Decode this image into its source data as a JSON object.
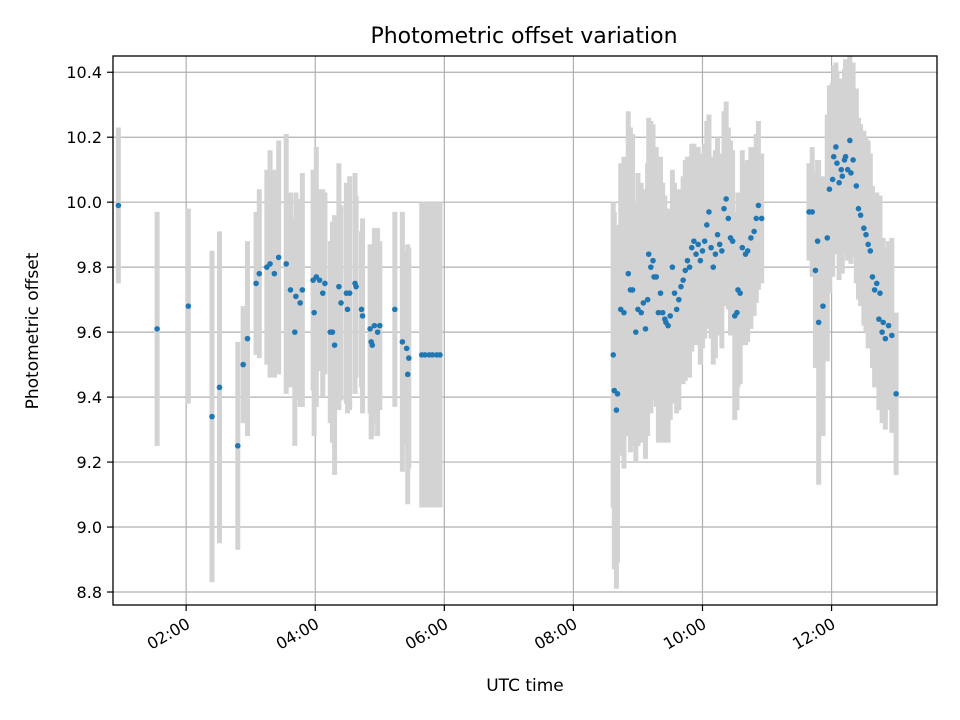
{
  "chart_data": {
    "type": "scatter",
    "title": "Photometric offset variation",
    "xlabel": "UTC time",
    "ylabel": "Photometric offset",
    "xlim": [
      "00:52",
      "13:38"
    ],
    "ylim": [
      8.76,
      10.45
    ],
    "grid": true,
    "x_ticks": [
      "02:00",
      "04:00",
      "06:00",
      "08:00",
      "10:00",
      "12:00"
    ],
    "y_ticks": [
      8.8,
      9.0,
      9.2,
      9.4,
      9.6,
      9.8,
      10.0,
      10.2,
      10.4
    ],
    "colors": {
      "point": "#1f77b4",
      "errorbar": "#d3d3d3",
      "grid": "#b0b0b0"
    },
    "series": [
      {
        "values": [
          [
            "00:57",
            9.99,
            0.24
          ],
          [
            "01:33",
            9.61,
            0.36
          ],
          [
            "02:02",
            9.68,
            0.3
          ],
          [
            "02:24",
            9.34,
            0.51
          ],
          [
            "02:31",
            9.43,
            0.48
          ],
          [
            "02:48",
            9.25,
            0.32
          ],
          [
            "02:53",
            9.5,
            0.18
          ],
          [
            "02:57",
            9.58,
            0.3
          ],
          [
            "03:05",
            9.75,
            0.22
          ],
          [
            "03:08",
            9.78,
            0.26
          ],
          [
            "03:15",
            9.8,
            0.3
          ],
          [
            "03:18",
            9.81,
            0.35
          ],
          [
            "03:22",
            9.78,
            0.32
          ],
          [
            "03:26",
            9.83,
            0.36
          ],
          [
            "03:33",
            9.81,
            0.4
          ],
          [
            "03:37",
            9.73,
            0.3
          ],
          [
            "03:41",
            9.6,
            0.35
          ],
          [
            "03:42",
            9.71,
            0.32
          ],
          [
            "03:46",
            9.69,
            0.32
          ],
          [
            "03:48",
            9.73,
            0.36
          ],
          [
            "03:58",
            9.76,
            0.34
          ],
          [
            "03:59",
            9.66,
            0.38
          ],
          [
            "04:01",
            9.77,
            0.4
          ],
          [
            "04:04",
            9.76,
            0.28
          ],
          [
            "04:07",
            9.72,
            0.32
          ],
          [
            "04:09",
            9.75,
            0.28
          ],
          [
            "04:14",
            9.6,
            0.28
          ],
          [
            "04:16",
            9.6,
            0.34
          ],
          [
            "04:18",
            9.56,
            0.4
          ],
          [
            "04:22",
            9.74,
            0.38
          ],
          [
            "04:24",
            9.69,
            0.3
          ],
          [
            "04:29",
            9.72,
            0.34
          ],
          [
            "04:30",
            9.67,
            0.32
          ],
          [
            "04:32",
            9.72,
            0.36
          ],
          [
            "04:37",
            9.75,
            0.34
          ],
          [
            "04:38",
            9.74,
            0.28
          ],
          [
            "04:43",
            9.67,
            0.24
          ],
          [
            "04:44",
            9.65,
            0.3
          ],
          [
            "04:51",
            9.61,
            0.26
          ],
          [
            "04:52",
            9.57,
            0.3
          ],
          [
            "04:53",
            9.56,
            0.28
          ],
          [
            "04:55",
            9.62,
            0.3
          ],
          [
            "04:58",
            9.6,
            0.32
          ],
          [
            "05:00",
            9.62,
            0.26
          ],
          [
            "05:14",
            9.67,
            0.3
          ],
          [
            "05:21",
            9.57,
            0.4
          ],
          [
            "05:25",
            9.55,
            0.3
          ],
          [
            "05:26",
            9.47,
            0.4
          ],
          [
            "05:27",
            9.52,
            0.34
          ],
          [
            "05:39",
            9.53,
            0.47
          ],
          [
            "05:42",
            9.53,
            0.47
          ],
          [
            "05:46",
            9.53,
            0.47
          ],
          [
            "05:49",
            9.53,
            0.47
          ],
          [
            "05:53",
            9.53,
            0.47
          ],
          [
            "05:56",
            9.53,
            0.47
          ],
          [
            "08:37",
            9.53,
            0.47
          ],
          [
            "08:38",
            9.42,
            0.55
          ],
          [
            "08:40",
            9.36,
            0.55
          ],
          [
            "08:41",
            9.41,
            0.52
          ],
          [
            "08:44",
            9.67,
            0.45
          ],
          [
            "08:47",
            9.66,
            0.48
          ],
          [
            "08:51",
            9.78,
            0.5
          ],
          [
            "08:53",
            9.73,
            0.5
          ],
          [
            "08:55",
            9.73,
            0.48
          ],
          [
            "08:58",
            9.6,
            0.4
          ],
          [
            "09:00",
            9.67,
            0.42
          ],
          [
            "09:03",
            9.66,
            0.4
          ],
          [
            "09:05",
            9.69,
            0.35
          ],
          [
            "09:07",
            9.61,
            0.4
          ],
          [
            "09:09",
            9.7,
            0.42
          ],
          [
            "09:10",
            9.84,
            0.42
          ],
          [
            "09:12",
            9.8,
            0.45
          ],
          [
            "09:14",
            9.82,
            0.42
          ],
          [
            "09:15",
            9.77,
            0.38
          ],
          [
            "09:17",
            9.77,
            0.4
          ],
          [
            "09:19",
            9.66,
            0.4
          ],
          [
            "09:21",
            9.72,
            0.42
          ],
          [
            "09:23",
            9.66,
            0.4
          ],
          [
            "09:25",
            9.64,
            0.38
          ],
          [
            "09:26",
            9.63,
            0.35
          ],
          [
            "09:28",
            9.62,
            0.36
          ],
          [
            "09:30",
            9.65,
            0.32
          ],
          [
            "09:32",
            9.8,
            0.3
          ],
          [
            "09:34",
            9.72,
            0.34
          ],
          [
            "09:36",
            9.67,
            0.32
          ],
          [
            "09:38",
            9.7,
            0.34
          ],
          [
            "09:40",
            9.74,
            0.3
          ],
          [
            "09:42",
            9.76,
            0.32
          ],
          [
            "09:44",
            9.79,
            0.34
          ],
          [
            "09:46",
            9.82,
            0.32
          ],
          [
            "09:48",
            9.8,
            0.34
          ],
          [
            "09:50",
            9.86,
            0.32
          ],
          [
            "09:52",
            9.88,
            0.3
          ],
          [
            "09:54",
            9.84,
            0.28
          ],
          [
            "09:56",
            9.87,
            0.3
          ],
          [
            "09:58",
            9.82,
            0.32
          ],
          [
            "10:00",
            9.85,
            0.3
          ],
          [
            "10:02",
            9.88,
            0.3
          ],
          [
            "10:04",
            9.93,
            0.32
          ],
          [
            "10:06",
            9.97,
            0.3
          ],
          [
            "10:08",
            9.86,
            0.28
          ],
          [
            "10:10",
            9.8,
            0.3
          ],
          [
            "10:12",
            9.84,
            0.32
          ],
          [
            "10:14",
            9.9,
            0.3
          ],
          [
            "10:16",
            9.87,
            0.28
          ],
          [
            "10:18",
            9.85,
            0.3
          ],
          [
            "10:20",
            9.98,
            0.3
          ],
          [
            "10:22",
            10.01,
            0.3
          ],
          [
            "10:24",
            9.95,
            0.28
          ],
          [
            "10:26",
            9.89,
            0.3
          ],
          [
            "10:28",
            9.88,
            0.28
          ],
          [
            "10:30",
            9.65,
            0.32
          ],
          [
            "10:32",
            9.66,
            0.3
          ],
          [
            "10:33",
            9.73,
            0.3
          ],
          [
            "10:35",
            9.72,
            0.28
          ],
          [
            "10:37",
            9.86,
            0.3
          ],
          [
            "10:40",
            9.84,
            0.28
          ],
          [
            "10:42",
            9.85,
            0.28
          ],
          [
            "10:45",
            9.89,
            0.28
          ],
          [
            "10:48",
            9.91,
            0.26
          ],
          [
            "10:50",
            9.95,
            0.26
          ],
          [
            "10:52",
            9.99,
            0.26
          ],
          [
            "10:55",
            9.95,
            0.2
          ],
          [
            "11:39",
            9.97,
            0.15
          ],
          [
            "11:42",
            9.97,
            0.2
          ],
          [
            "11:45",
            9.79,
            0.3
          ],
          [
            "11:47",
            9.88,
            0.25
          ],
          [
            "11:48",
            9.63,
            0.5
          ],
          [
            "11:52",
            9.68,
            0.4
          ],
          [
            "11:56",
            9.89,
            0.38
          ],
          [
            "11:58",
            10.04,
            0.32
          ],
          [
            "12:01",
            10.07,
            0.3
          ],
          [
            "12:02",
            10.14,
            0.28
          ],
          [
            "12:04",
            10.17,
            0.26
          ],
          [
            "12:05",
            10.12,
            0.28
          ],
          [
            "12:07",
            10.06,
            0.3
          ],
          [
            "12:09",
            10.1,
            0.28
          ],
          [
            "12:10",
            10.08,
            0.3
          ],
          [
            "12:12",
            10.13,
            0.28
          ],
          [
            "12:13",
            10.14,
            0.3
          ],
          [
            "12:15",
            10.1,
            0.28
          ],
          [
            "12:17",
            10.19,
            0.26
          ],
          [
            "12:18",
            10.09,
            0.28
          ],
          [
            "12:20",
            10.13,
            0.3
          ],
          [
            "12:23",
            10.05,
            0.3
          ],
          [
            "12:25",
            9.98,
            0.28
          ],
          [
            "12:27",
            9.96,
            0.28
          ],
          [
            "12:30",
            9.92,
            0.3
          ],
          [
            "12:32",
            9.9,
            0.3
          ],
          [
            "12:34",
            9.87,
            0.32
          ],
          [
            "12:36",
            9.85,
            0.3
          ],
          [
            "12:38",
            9.77,
            0.28
          ],
          [
            "12:40",
            9.73,
            0.3
          ],
          [
            "12:42",
            9.75,
            0.28
          ],
          [
            "12:44",
            9.64,
            0.28
          ],
          [
            "12:45",
            9.72,
            0.3
          ],
          [
            "12:47",
            9.6,
            0.28
          ],
          [
            "12:48",
            9.63,
            0.26
          ],
          [
            "12:50",
            9.58,
            0.28
          ],
          [
            "12:53",
            9.62,
            0.26
          ],
          [
            "12:56",
            9.59,
            0.3
          ],
          [
            "13:00",
            9.41,
            0.25
          ]
        ]
      }
    ]
  }
}
